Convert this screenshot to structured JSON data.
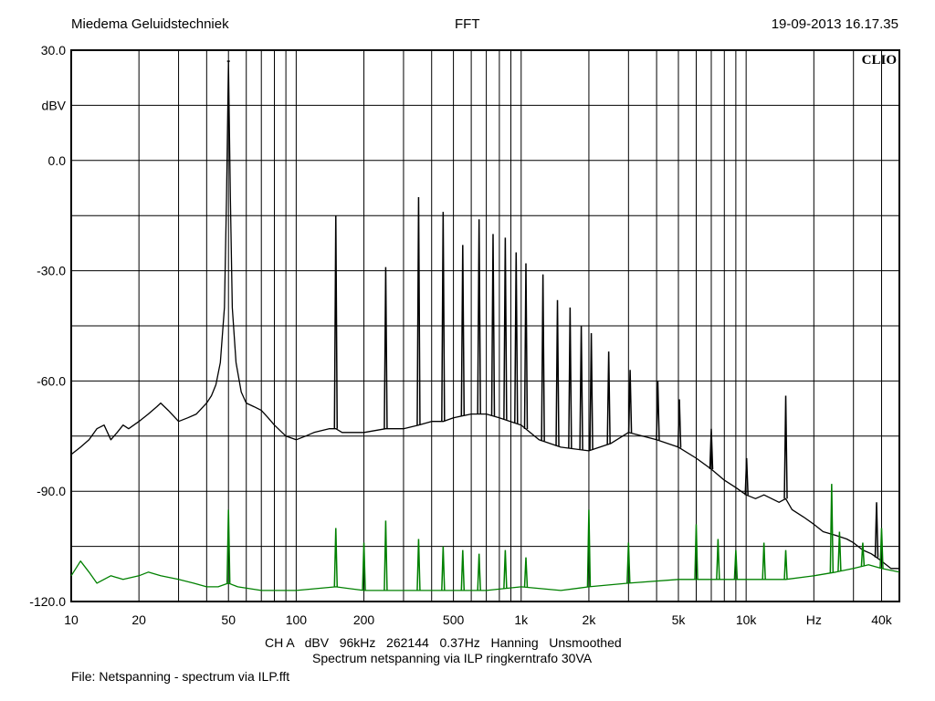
{
  "header": {
    "left": "Miedema Geluidstechniek",
    "center": "FFT",
    "right": "19-09-2013 16.17.35"
  },
  "brand": "CLIO",
  "info": {
    "line": "CH A   dBV   96kHz   262144   0.37Hz   Hanning   Unsmoothed",
    "title": "Spectrum netspanning via ILP ringkerntrafo 30VA",
    "file": "File: Netspanning - spectrum via ILP.fft"
  },
  "colors": {
    "grid": "#000000",
    "black_trace": "#000000",
    "green_trace": "#008000"
  },
  "chart_data": {
    "type": "line",
    "title": "",
    "xlabel": "Hz",
    "ylabel": "dBV",
    "xscale": "log",
    "xlim": [
      10,
      48000
    ],
    "ylim": [
      -120,
      30
    ],
    "grid": true,
    "y_ticks": [
      {
        "value": 30,
        "label": "30.0"
      },
      {
        "value": 15,
        "label": "dBV"
      },
      {
        "value": 0,
        "label": "0.0"
      },
      {
        "value": -30,
        "label": "-30.0"
      },
      {
        "value": -60,
        "label": "-60.0"
      },
      {
        "value": -90,
        "label": "-90.0"
      },
      {
        "value": -120,
        "label": "-120.0"
      }
    ],
    "x_ticks": [
      {
        "value": 10,
        "label": "10"
      },
      {
        "value": 20,
        "label": "20"
      },
      {
        "value": 50,
        "label": "50"
      },
      {
        "value": 100,
        "label": "100"
      },
      {
        "value": 200,
        "label": "200"
      },
      {
        "value": 500,
        "label": "500"
      },
      {
        "value": 1000,
        "label": "1k"
      },
      {
        "value": 2000,
        "label": "2k"
      },
      {
        "value": 5000,
        "label": "5k"
      },
      {
        "value": 10000,
        "label": "10k"
      },
      {
        "value": 20000,
        "label": "Hz"
      },
      {
        "value": 40000,
        "label": "40k"
      }
    ],
    "series": [
      {
        "color": "#000000",
        "x": [
          10,
          11,
          12,
          13,
          14,
          15,
          16,
          17,
          18,
          20,
          22,
          24,
          25,
          27,
          30,
          33,
          36,
          40,
          42,
          44,
          46,
          48,
          49,
          50,
          51,
          52,
          54,
          57,
          60,
          65,
          70,
          75,
          80,
          90,
          100,
          110,
          120,
          140,
          150,
          160,
          180,
          200,
          250,
          300,
          350,
          400,
          450,
          500,
          600,
          700,
          800,
          1000,
          1200,
          1500,
          2000,
          2500,
          3000,
          4000,
          5000,
          6000,
          7000,
          8000,
          9000,
          10000,
          11000,
          12000,
          14000,
          15000,
          16000,
          18000,
          20000,
          22000,
          25000,
          28000,
          30000,
          33000,
          36000,
          38000,
          40000,
          44000,
          48000
        ],
        "values": [
          -80,
          -78,
          -76,
          -73,
          -72,
          -76,
          -74,
          -72,
          -73,
          -71,
          -69,
          -67,
          -66,
          -68,
          -71,
          -70,
          -69,
          -66,
          -64,
          -61,
          -55,
          -40,
          -10,
          27,
          -10,
          -40,
          -55,
          -63,
          -66,
          -67,
          -68,
          -70,
          -72,
          -75,
          -76,
          -75,
          -74,
          -73,
          -73,
          -74,
          -74,
          -74,
          -73,
          -73,
          -72,
          -71,
          -71,
          -70,
          -69,
          -69,
          -70,
          -72,
          -76,
          -78,
          -79,
          -77,
          -74,
          -76,
          -78,
          -81,
          -84,
          -87,
          -89,
          -91,
          -92,
          -91,
          -93,
          -92,
          -95,
          -97,
          -99,
          -101,
          -102,
          -103,
          -104,
          -106,
          -107,
          -108,
          -109,
          -111,
          -111
        ],
        "peaks": [
          {
            "x": 50,
            "y": 27
          },
          {
            "x": 150,
            "y": -15
          },
          {
            "x": 250,
            "y": -29
          },
          {
            "x": 350,
            "y": -10
          },
          {
            "x": 450,
            "y": -14
          },
          {
            "x": 550,
            "y": -23
          },
          {
            "x": 650,
            "y": -16
          },
          {
            "x": 750,
            "y": -20
          },
          {
            "x": 850,
            "y": -21
          },
          {
            "x": 950,
            "y": -25
          },
          {
            "x": 1050,
            "y": -28
          },
          {
            "x": 1250,
            "y": -31
          },
          {
            "x": 1450,
            "y": -38
          },
          {
            "x": 1650,
            "y": -40
          },
          {
            "x": 1850,
            "y": -45
          },
          {
            "x": 2050,
            "y": -47
          },
          {
            "x": 2450,
            "y": -52
          },
          {
            "x": 3050,
            "y": -57
          },
          {
            "x": 4050,
            "y": -60
          },
          {
            "x": 5050,
            "y": -65
          },
          {
            "x": 7000,
            "y": -73
          },
          {
            "x": 10050,
            "y": -81
          },
          {
            "x": 15000,
            "y": -64
          },
          {
            "x": 38000,
            "y": -93
          }
        ]
      },
      {
        "color": "#008000",
        "x": [
          10,
          11,
          12,
          13,
          15,
          17,
          20,
          22,
          25,
          30,
          35,
          40,
          45,
          50,
          55,
          70,
          100,
          150,
          200,
          300,
          500,
          700,
          1000,
          1500,
          2000,
          3000,
          5000,
          7000,
          10000,
          15000,
          20000,
          25000,
          30000,
          35000,
          40000,
          48000
        ],
        "values": [
          -113,
          -109,
          -112,
          -115,
          -113,
          -114,
          -113,
          -112,
          -113,
          -114,
          -115,
          -116,
          -116,
          -115,
          -116,
          -117,
          -117,
          -116,
          -117,
          -117,
          -117,
          -117,
          -116,
          -117,
          -116,
          -115,
          -114,
          -114,
          -114,
          -114,
          -113,
          -112,
          -111,
          -110,
          -111,
          -112
        ],
        "peaks": [
          {
            "x": 50,
            "y": -95
          },
          {
            "x": 150,
            "y": -100
          },
          {
            "x": 200,
            "y": -104
          },
          {
            "x": 250,
            "y": -98
          },
          {
            "x": 350,
            "y": -103
          },
          {
            "x": 450,
            "y": -105
          },
          {
            "x": 550,
            "y": -106
          },
          {
            "x": 650,
            "y": -107
          },
          {
            "x": 850,
            "y": -106
          },
          {
            "x": 1050,
            "y": -108
          },
          {
            "x": 2000,
            "y": -95
          },
          {
            "x": 3000,
            "y": -104
          },
          {
            "x": 6000,
            "y": -99
          },
          {
            "x": 7500,
            "y": -103
          },
          {
            "x": 9000,
            "y": -106
          },
          {
            "x": 12000,
            "y": -104
          },
          {
            "x": 15000,
            "y": -106
          },
          {
            "x": 24000,
            "y": -88
          },
          {
            "x": 26000,
            "y": -101
          },
          {
            "x": 33000,
            "y": -104
          },
          {
            "x": 40000,
            "y": -100
          }
        ]
      }
    ]
  }
}
